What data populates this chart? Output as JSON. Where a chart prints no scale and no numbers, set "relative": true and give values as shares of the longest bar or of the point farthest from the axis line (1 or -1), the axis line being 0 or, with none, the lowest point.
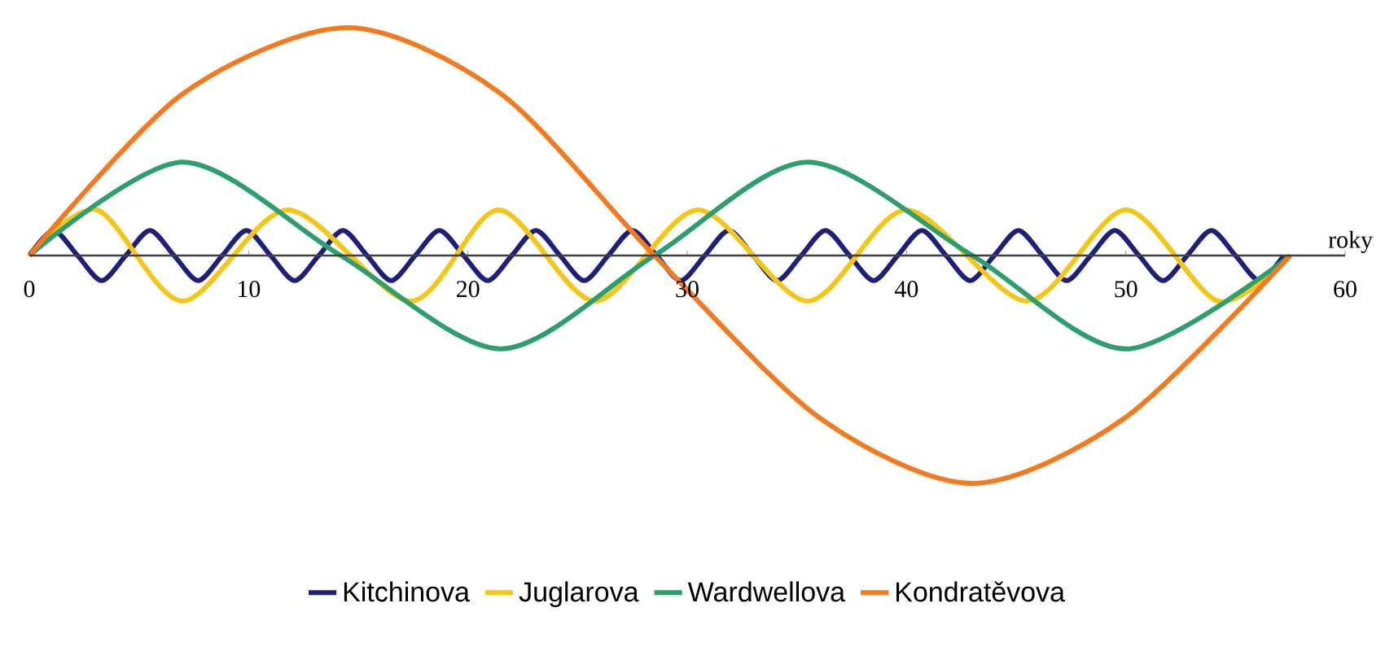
{
  "chart_data": {
    "type": "line",
    "relative": true,
    "xlabel": "roky",
    "xlim": [
      0,
      60
    ],
    "xticks": [
      0,
      10,
      20,
      30,
      40,
      50,
      60
    ],
    "legend": "bottom",
    "series": [
      {
        "name": "Kitchinova",
        "color": "#1f1f7a",
        "x": [
          0,
          1.1,
          2.2,
          3.3,
          4.4,
          5.5,
          6.6,
          7.7,
          8.8,
          9.9,
          11,
          12.1,
          13.2,
          14.3,
          15.4,
          16.5,
          17.6,
          18.7,
          19.8,
          20.9,
          22,
          23.1,
          24.2,
          25.3,
          26.4,
          27.5,
          28.6,
          29.7,
          30.8,
          31.9,
          33,
          34.1,
          35.2,
          36.3,
          37.4,
          38.5,
          39.6,
          40.7,
          41.8,
          42.9,
          44,
          45.1,
          46.2,
          47.3,
          48.4,
          49.5,
          50.6,
          51.7,
          52.8,
          53.9,
          55,
          56.1,
          57.2
        ],
        "values": [
          0,
          0.11,
          0,
          -0.11,
          0,
          0.11,
          0,
          -0.11,
          0,
          0.11,
          0,
          -0.11,
          0,
          0.11,
          0,
          -0.11,
          0,
          0.11,
          0,
          -0.11,
          0,
          0.11,
          0,
          -0.11,
          0,
          0.11,
          0,
          -0.11,
          0,
          0.11,
          0,
          -0.11,
          0,
          0.11,
          0,
          -0.11,
          0,
          0.11,
          0,
          -0.11,
          0,
          0.11,
          0,
          -0.11,
          0,
          0.11,
          0,
          -0.11,
          0,
          0.11,
          0,
          -0.11,
          0
        ]
      },
      {
        "name": "Juglarova",
        "color": "#f5c518",
        "x": [
          0,
          3.1,
          7,
          11.8,
          17.4,
          21.4,
          25.8,
          30.5,
          35.5,
          40,
          45.5,
          50,
          54.2,
          57.5
        ],
        "values": [
          0,
          0.2,
          -0.2,
          0.2,
          -0.2,
          0.2,
          -0.2,
          0.2,
          -0.2,
          0.2,
          -0.2,
          0.2,
          -0.2,
          0
        ]
      },
      {
        "name": "Wardwellova",
        "color": "#2e9e6e",
        "x": [
          0,
          7,
          14.2,
          21.5,
          28.5,
          35.5,
          43,
          50,
          57.5
        ],
        "values": [
          0,
          0.41,
          0,
          -0.41,
          0,
          0.41,
          0,
          -0.41,
          0
        ]
      },
      {
        "name": "Kondratěvova",
        "color": "#f47a20",
        "x": [
          0,
          7,
          14.5,
          21.5,
          28.5,
          36,
          43,
          50,
          57.5
        ],
        "values": [
          0,
          0.71,
          1,
          0.71,
          0,
          -0.71,
          -1,
          -0.71,
          0
        ]
      }
    ]
  }
}
